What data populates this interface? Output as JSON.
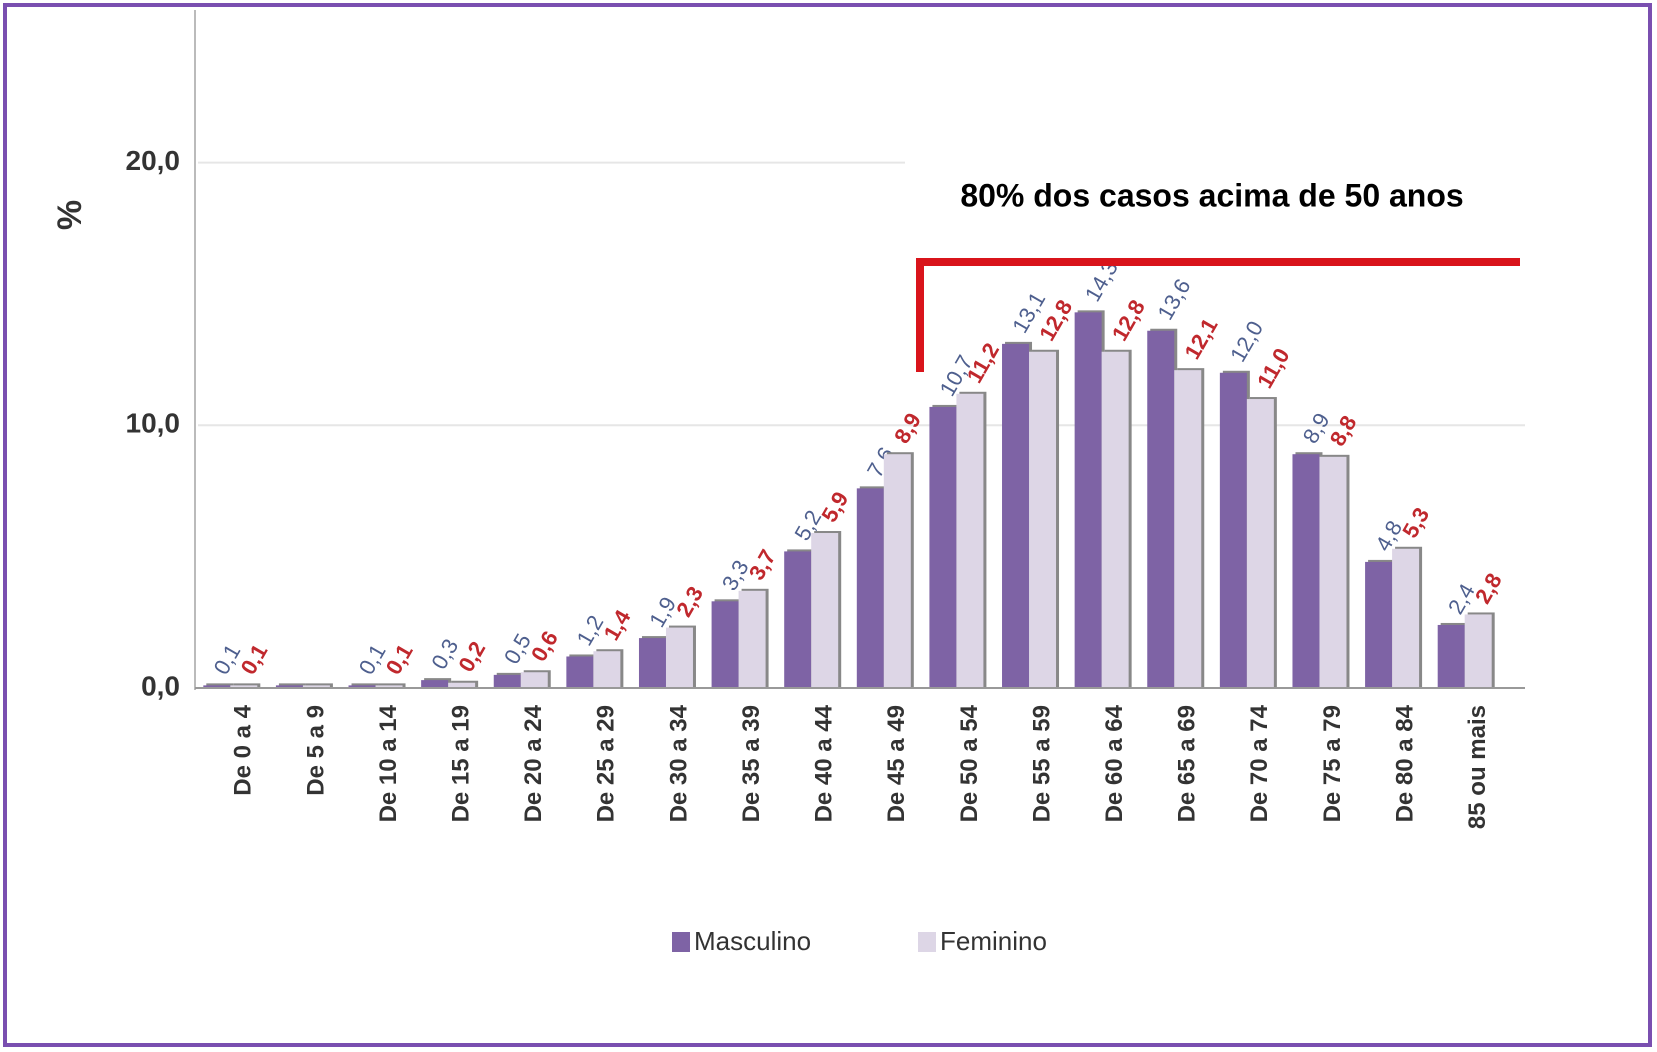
{
  "chart_data": {
    "type": "bar",
    "ylabel": "%",
    "annotation": "80% dos casos acima de 50 anos",
    "categories": [
      "De 0 a 4",
      "De 5 a 9",
      "De 10 a 14",
      "De 15 a 19",
      "De 20 a 24",
      "De 25 a 29",
      "De 30 a 34",
      "De 35 a 39",
      "De 40 a 44",
      "De 45 a 49",
      "De 50 a 54",
      "De 55 a 59",
      "De 60 a 64",
      "De 65 a 69",
      "De 70 a 74",
      "De 75 a 79",
      "De 80 a 84",
      "85 ou mais"
    ],
    "series": [
      {
        "name": "Masculino",
        "color": "#7e63a5",
        "label_color": "#4e5f8e",
        "values": [
          0.1,
          0.1,
          0.1,
          0.3,
          0.5,
          1.2,
          1.9,
          3.3,
          5.2,
          7.6,
          10.7,
          13.1,
          14.3,
          13.6,
          12.0,
          8.9,
          4.8,
          2.4
        ],
        "value_labels": [
          "0,1",
          null,
          "0,1",
          "0,3",
          "0,5",
          "1,2",
          "1,9",
          "3,3",
          "5,2",
          "7,6",
          "10,7",
          "13,1",
          "14,3",
          "13,6",
          "12,0",
          "8,9",
          "4,8",
          "2,4"
        ]
      },
      {
        "name": "Feminino",
        "color": "#ddd6e6",
        "label_color": "#c0282d",
        "values": [
          0.1,
          0.1,
          0.1,
          0.2,
          0.6,
          1.4,
          2.3,
          3.7,
          5.9,
          8.9,
          11.2,
          12.8,
          12.8,
          12.1,
          11.0,
          8.8,
          5.3,
          2.8
        ],
        "value_labels": [
          "0,1",
          null,
          "0,1",
          "0,2",
          "0,6",
          "1,4",
          "2,3",
          "3,7",
          "5,9",
          "8,9",
          "11,2",
          "12,8",
          "12,8",
          "12,1",
          "11,0",
          "8,8",
          "5,3",
          "2,8"
        ]
      }
    ],
    "ylim": [
      0,
      26
    ],
    "yticks": [
      {
        "value": 0,
        "label": "0,0"
      },
      {
        "value": 10,
        "label": "10,0"
      },
      {
        "value": 20,
        "label": "20,0"
      }
    ],
    "grid": true
  }
}
